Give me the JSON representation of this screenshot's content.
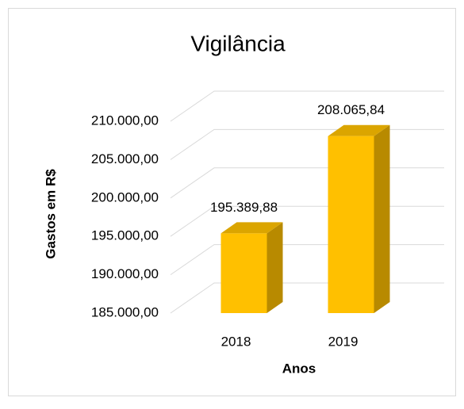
{
  "chart_data": {
    "type": "bar3d",
    "title": "Vigilância",
    "x_label": "Anos",
    "y_label": "Gastos em R$",
    "categories": [
      "2018",
      "2019"
    ],
    "values": [
      195389.88,
      208065.84
    ],
    "value_labels": [
      "195.389,88",
      "208.065,84"
    ],
    "color": "#ffc000",
    "ylim": [
      185000,
      210000
    ],
    "yticks": [
      {
        "value": 185000,
        "label": "185.000,00"
      },
      {
        "value": 190000,
        "label": "190.000,00"
      },
      {
        "value": 195000,
        "label": "195.000,00"
      },
      {
        "value": 200000,
        "label": "200.000,00"
      },
      {
        "value": 205000,
        "label": "205.000,00"
      },
      {
        "value": 210000,
        "label": "210.000,00"
      }
    ],
    "grid": true
  }
}
